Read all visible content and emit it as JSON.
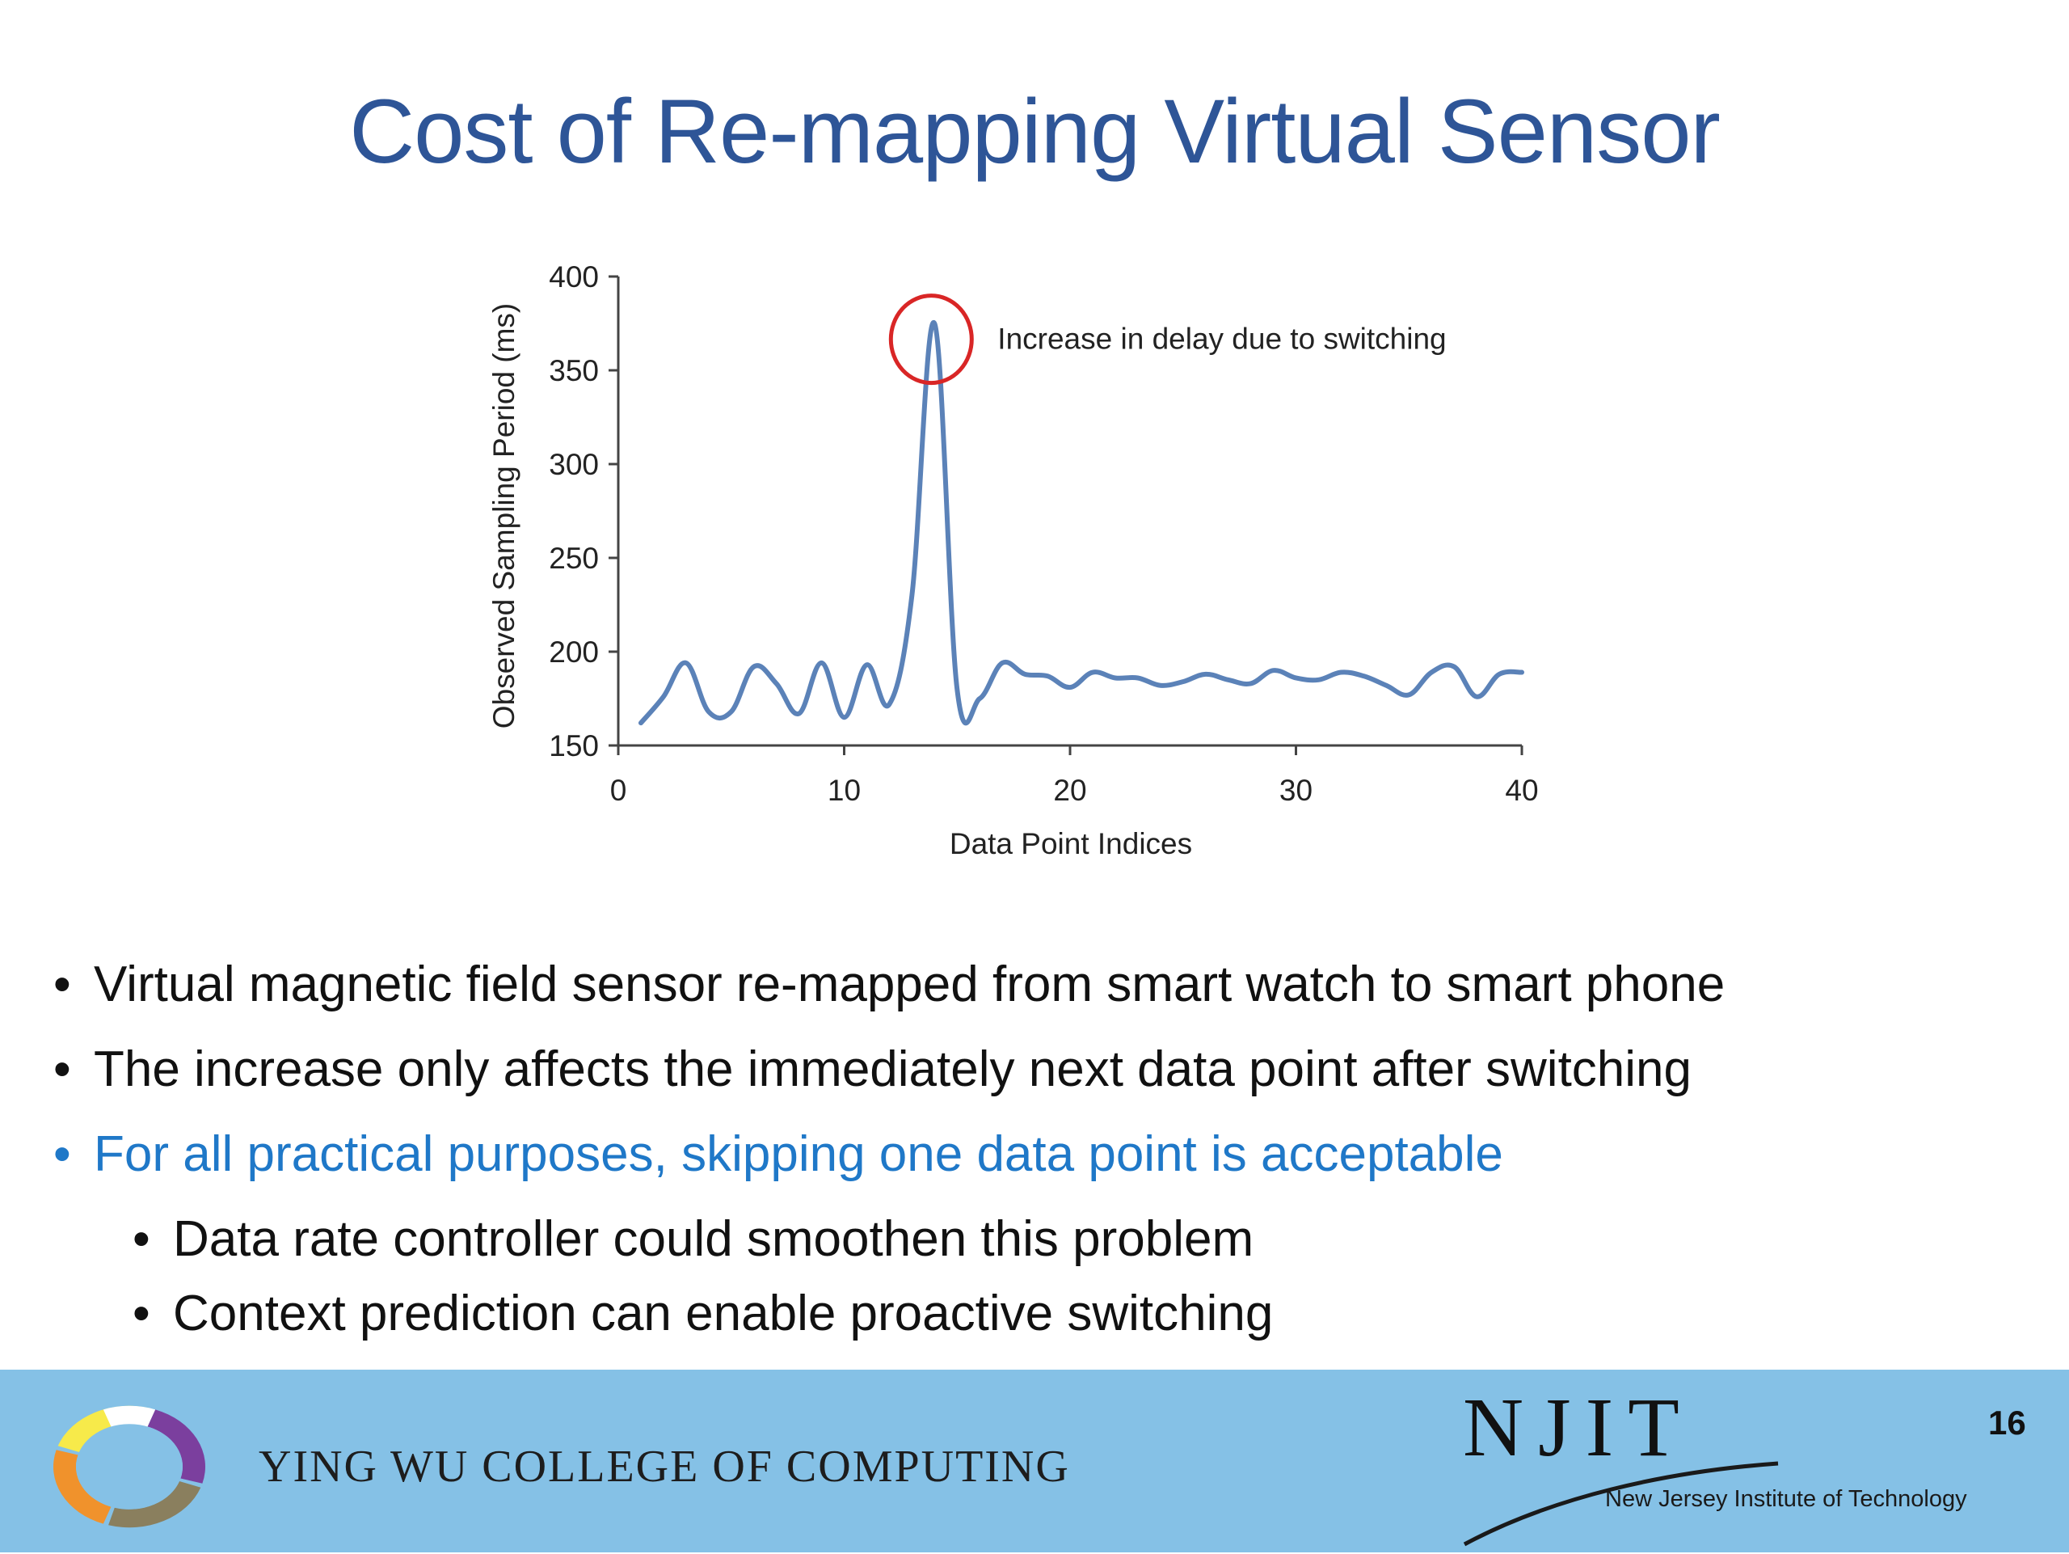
{
  "slide": {
    "title": "Cost of Re-mapping Virtual Sensor",
    "page_number": "16"
  },
  "chart_data": {
    "type": "line",
    "xlabel": "Data Point Indices",
    "ylabel": "Observed Sampling Period (ms)",
    "xlim": [
      0,
      40
    ],
    "ylim": [
      150,
      400
    ],
    "x_ticks": [
      0,
      10,
      20,
      30,
      40
    ],
    "y_ticks": [
      150,
      200,
      250,
      300,
      350,
      400
    ],
    "grid": false,
    "series": [
      {
        "color": "#5b82b8",
        "x": [
          1,
          2,
          3,
          4,
          5,
          6,
          7,
          8,
          9,
          10,
          11,
          12,
          13,
          14,
          15,
          16,
          17,
          18,
          19,
          20,
          21,
          22,
          23,
          24,
          25,
          26,
          27,
          28,
          29,
          30,
          31,
          32,
          33,
          34,
          35,
          36,
          37,
          38,
          39,
          40
        ],
        "values": [
          162,
          176,
          194,
          168,
          168,
          192,
          183,
          167,
          194,
          165,
          193,
          172,
          230,
          375,
          180,
          175,
          194,
          188,
          187,
          181,
          189,
          186,
          186,
          182,
          184,
          188,
          185,
          183,
          190,
          186,
          185,
          189,
          187,
          182,
          177,
          189,
          192,
          176,
          188,
          189
        ]
      }
    ],
    "annotation": {
      "text": "Increase in delay due to switching",
      "x": 14,
      "y": 370,
      "marker_color": "#d92626"
    }
  },
  "bullets": [
    {
      "text": "Virtual magnetic field sensor re-mapped from smart watch to smart phone",
      "level": 1
    },
    {
      "text": "The increase only affects the immediately next data point after switching",
      "level": 1
    },
    {
      "text": "For all practical purposes, skipping one data point is acceptable",
      "level": 1
    },
    {
      "text": "Data rate controller could smoothen this problem",
      "level": 2
    },
    {
      "text": "Context prediction can enable proactive switching",
      "level": 2
    }
  ],
  "bullet_symbol": "•",
  "footer": {
    "college_name": "YING WU COLLEGE OF COMPUTING",
    "university_logo_text": "NJIT",
    "university_name": "New Jersey Institute of Technology",
    "logo_ring_colors": [
      "#f7ea4a",
      "#7b3f9e",
      "#8a7f5e",
      "#f0922c"
    ]
  }
}
